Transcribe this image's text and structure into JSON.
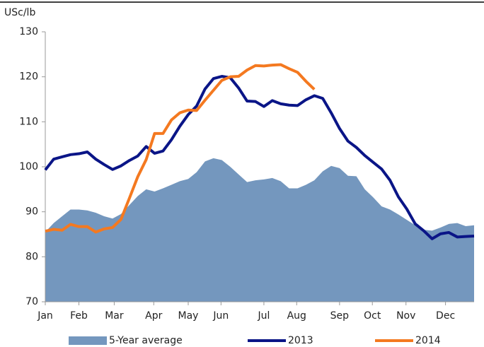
{
  "chart_data": {
    "type": "area-line",
    "y_label": "USc/lb",
    "x": [
      1,
      2,
      3,
      4,
      5,
      6,
      7,
      8,
      9,
      10,
      11,
      12,
      13,
      14,
      15,
      16,
      17,
      18,
      19,
      20,
      21,
      22,
      23,
      24,
      25,
      26,
      27,
      28,
      29,
      30,
      31,
      32,
      33,
      34,
      35,
      36,
      37,
      38,
      39,
      40,
      41,
      42,
      43,
      44,
      45,
      46,
      47,
      48,
      49,
      50,
      51,
      52
    ],
    "xlim": [
      1,
      52
    ],
    "xticks": [
      {
        "value": 1,
        "label": "Jan"
      },
      {
        "value": 5,
        "label": "Feb"
      },
      {
        "value": 9.2,
        "label": "Mar"
      },
      {
        "value": 13.9,
        "label": "Apr"
      },
      {
        "value": 18,
        "label": "May"
      },
      {
        "value": 21.9,
        "label": "Jun"
      },
      {
        "value": 27,
        "label": "Jul"
      },
      {
        "value": 30.9,
        "label": "Aug"
      },
      {
        "value": 36,
        "label": "Sep"
      },
      {
        "value": 39.9,
        "label": "Oct"
      },
      {
        "value": 43.9,
        "label": "Nov"
      },
      {
        "value": 48.6,
        "label": "Dec"
      }
    ],
    "ylim": [
      70,
      130
    ],
    "yticks": [
      70,
      80,
      90,
      100,
      110,
      120,
      130
    ],
    "grid": false,
    "series": [
      {
        "name": "5-Year average",
        "kind": "area",
        "color": "#7497be",
        "values": [
          85.5,
          87.5,
          89,
          90.5,
          90.5,
          90.3,
          89.8,
          89,
          88.5,
          89.5,
          91.5,
          93.5,
          95,
          94.5,
          95.2,
          96,
          96.8,
          97.3,
          98.8,
          101.2,
          101.9,
          101.5,
          100,
          98.3,
          96.6,
          97,
          97.2,
          97.5,
          96.8,
          95.2,
          95.2,
          96,
          97,
          99,
          100.2,
          99.7,
          98,
          97.9,
          95,
          93.2,
          91.2,
          90.5,
          89.4,
          88.2,
          87,
          86,
          85.8,
          86.5,
          87.3,
          87.5,
          86.8,
          87
        ]
      },
      {
        "name": "2013",
        "kind": "line",
        "color": "#0a1587",
        "values": [
          99.3,
          101.7,
          102.2,
          102.7,
          102.9,
          103.3,
          101.7,
          100.5,
          99.4,
          100.2,
          101.4,
          102.4,
          104.5,
          103,
          103.5,
          106,
          109,
          111.6,
          113.5,
          117.3,
          119.6,
          120.1,
          119.8,
          117.5,
          114.6,
          114.5,
          113.4,
          114.7,
          114,
          113.7,
          113.6,
          114.9,
          115.8,
          115.2,
          112,
          108.5,
          105.7,
          104.3,
          102.5,
          101,
          99.5,
          97,
          93.3,
          90.6,
          87.3,
          85.8,
          84,
          85.1,
          85.4,
          84.4,
          84.5,
          84.6
        ]
      },
      {
        "name": "2014",
        "kind": "line",
        "color": "#f47920",
        "values": [
          85.7,
          86.1,
          85.9,
          87.2,
          86.7,
          86.7,
          85.5,
          86.2,
          86.5,
          88.3,
          93,
          97.8,
          101.6,
          107.4,
          107.4,
          110.4,
          112,
          112.6,
          112.5,
          114.8,
          117,
          119.2,
          120,
          120.1,
          121.5,
          122.5,
          122.4,
          122.6,
          122.7,
          121.8,
          121,
          119,
          117.2,
          null,
          null,
          null,
          null,
          null,
          null,
          null,
          null,
          null,
          null,
          null,
          null,
          null,
          null,
          null,
          null,
          null,
          null,
          null
        ]
      }
    ]
  }
}
